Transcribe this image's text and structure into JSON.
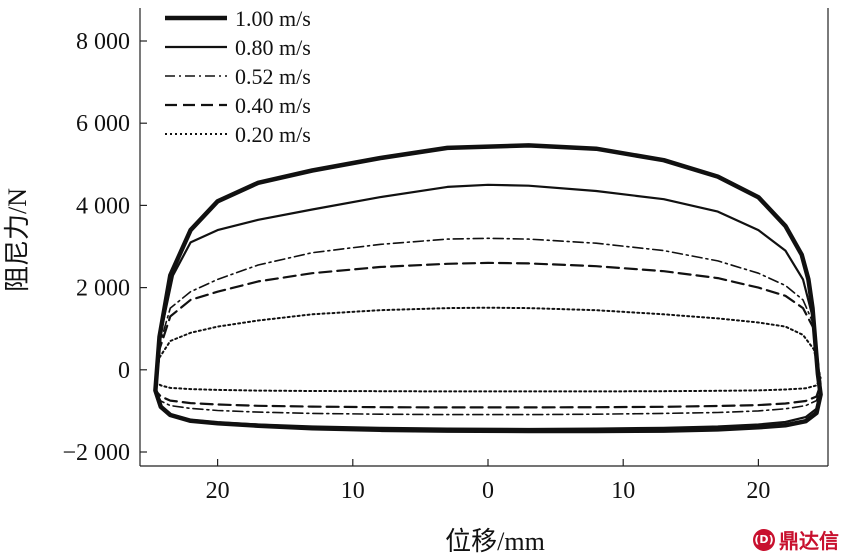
{
  "chart_data": {
    "type": "line",
    "title": "",
    "xlabel": "位移/mm",
    "ylabel": "阻尼力/N",
    "xlim": [
      -25,
      25
    ],
    "ylim": [
      -2000,
      8000
    ],
    "x_ticks": [
      -20,
      -10,
      0,
      10,
      20
    ],
    "x_tick_labels": [
      "20",
      "10",
      "0",
      "10",
      "20"
    ],
    "y_ticks": [
      -2000,
      0,
      2000,
      4000,
      6000,
      8000
    ],
    "y_tick_labels": [
      "−2 000",
      "0",
      "2 000",
      "4 000",
      "6 000",
      "8 000"
    ],
    "grid": false,
    "legend_position": "top-left",
    "series": [
      {
        "name": "1.00 m/s",
        "style": "solid-thick",
        "x": [
          -24.6,
          -24.3,
          -23.5,
          -22,
          -20,
          -17,
          -13,
          -8,
          -3,
          3,
          8,
          13,
          17,
          20,
          22,
          23.2,
          23.7,
          24.0,
          24.2,
          24.4,
          24.6,
          24.3,
          23.5,
          22,
          20,
          17,
          13,
          8,
          3,
          -3,
          -8,
          -13,
          -17,
          -20,
          -22,
          -23.5,
          -24.2,
          -24.6
        ],
        "y": [
          -500,
          800,
          2300,
          3400,
          4100,
          4550,
          4850,
          5150,
          5400,
          5460,
          5380,
          5100,
          4700,
          4200,
          3500,
          2800,
          2200,
          1500,
          700,
          -100,
          -600,
          -1050,
          -1250,
          -1350,
          -1400,
          -1450,
          -1480,
          -1490,
          -1490,
          -1480,
          -1460,
          -1420,
          -1360,
          -1300,
          -1240,
          -1100,
          -900,
          -500
        ]
      },
      {
        "name": "0.80 m/s",
        "style": "solid",
        "x": [
          -24.6,
          -24.2,
          -23.3,
          -22,
          -20,
          -17,
          -13,
          -8,
          -3,
          0,
          3,
          8,
          13,
          17,
          20,
          22,
          23.3,
          24.0,
          24.3,
          24.6,
          24.3,
          23.5,
          22,
          20,
          17,
          13,
          8,
          3,
          -3,
          -8,
          -13,
          -17,
          -20,
          -22,
          -23.5,
          -24.2,
          -24.6
        ],
        "y": [
          -500,
          900,
          2300,
          3100,
          3400,
          3650,
          3900,
          4200,
          4450,
          4500,
          4480,
          4350,
          4150,
          3850,
          3400,
          2900,
          2200,
          1300,
          500,
          -500,
          -950,
          -1150,
          -1270,
          -1330,
          -1380,
          -1410,
          -1430,
          -1440,
          -1430,
          -1410,
          -1380,
          -1330,
          -1280,
          -1220,
          -1080,
          -880,
          -500
        ]
      },
      {
        "name": "0.52 m/s",
        "style": "dash-dot",
        "x": [
          -24.6,
          -24.3,
          -23.5,
          -22,
          -20,
          -17,
          -13,
          -8,
          -3,
          0,
          3,
          8,
          13,
          17,
          20,
          22,
          23.3,
          24.1,
          24.6,
          24.3,
          23.5,
          22,
          20,
          17,
          13,
          8,
          3,
          -3,
          -8,
          -13,
          -17,
          -20,
          -22,
          -23.5,
          -24.2,
          -24.6
        ],
        "y": [
          -500,
          600,
          1500,
          1900,
          2200,
          2550,
          2850,
          3050,
          3180,
          3200,
          3180,
          3080,
          2900,
          2650,
          2350,
          2050,
          1700,
          1100,
          -400,
          -750,
          -870,
          -950,
          -1000,
          -1040,
          -1060,
          -1080,
          -1090,
          -1090,
          -1080,
          -1060,
          -1030,
          -990,
          -940,
          -870,
          -760,
          -500
        ]
      },
      {
        "name": "0.40 m/s",
        "style": "dashed",
        "x": [
          -24.6,
          -24.3,
          -23.5,
          -22,
          -20,
          -17,
          -13,
          -8,
          -3,
          0,
          3,
          8,
          13,
          17,
          20,
          22,
          23.3,
          24.1,
          24.6,
          24.3,
          23.5,
          22,
          20,
          17,
          13,
          8,
          3,
          -3,
          -8,
          -13,
          -17,
          -20,
          -22,
          -23.5,
          -24.2,
          -24.6
        ],
        "y": [
          -500,
          500,
          1300,
          1700,
          1900,
          2150,
          2350,
          2500,
          2580,
          2600,
          2590,
          2520,
          2400,
          2230,
          2000,
          1800,
          1500,
          1000,
          -350,
          -650,
          -760,
          -820,
          -860,
          -880,
          -900,
          -910,
          -915,
          -915,
          -910,
          -895,
          -875,
          -845,
          -810,
          -750,
          -650,
          -500
        ]
      },
      {
        "name": "0.20 m/s",
        "style": "dotted",
        "x": [
          -24.6,
          -24.3,
          -23.5,
          -22,
          -20,
          -17,
          -13,
          -8,
          -3,
          0,
          3,
          8,
          13,
          17,
          20,
          22,
          23.3,
          24.1,
          24.6,
          24.3,
          23.5,
          22,
          20,
          17,
          13,
          8,
          3,
          -3,
          -8,
          -13,
          -17,
          -20,
          -22,
          -23.5,
          -24.2,
          -24.6
        ],
        "y": [
          -300,
          300,
          700,
          900,
          1050,
          1200,
          1350,
          1450,
          1500,
          1510,
          1500,
          1450,
          1350,
          1250,
          1150,
          1050,
          850,
          500,
          -200,
          -380,
          -450,
          -480,
          -500,
          -510,
          -520,
          -525,
          -525,
          -525,
          -520,
          -515,
          -505,
          -490,
          -470,
          -440,
          -380,
          -300
        ]
      }
    ]
  },
  "watermark": {
    "text": "鼎达信",
    "logo_text": "(D)"
  }
}
